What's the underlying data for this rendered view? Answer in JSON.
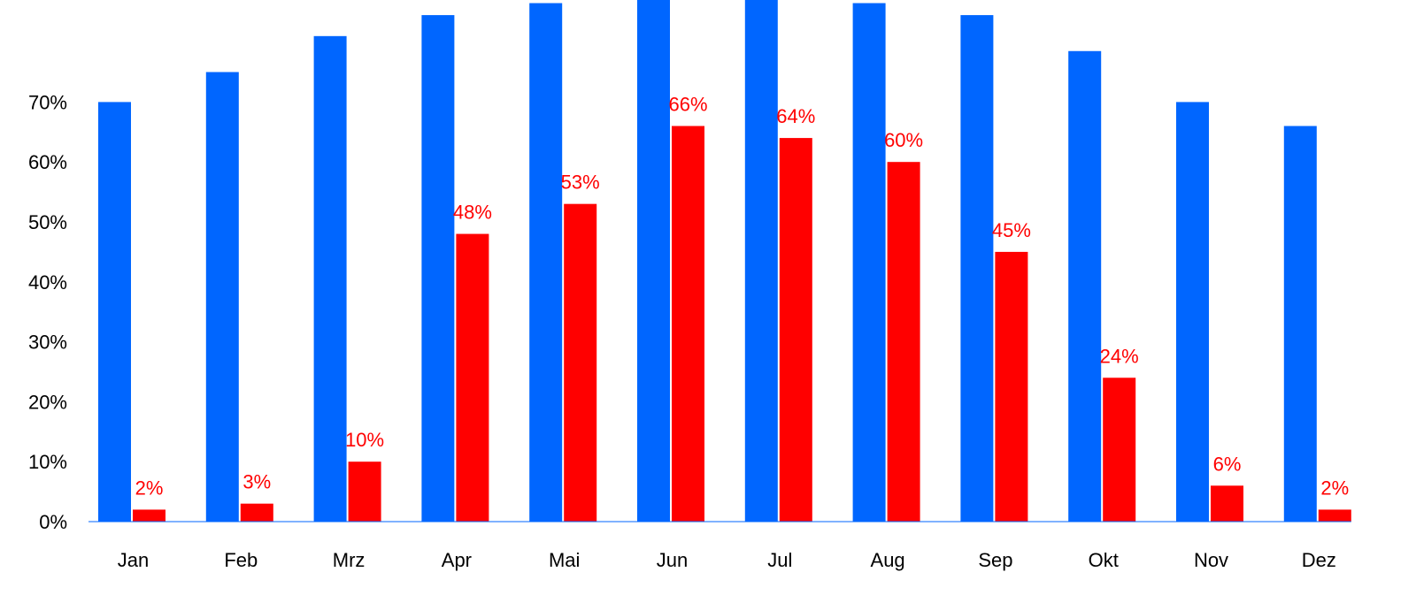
{
  "chart_data": {
    "type": "bar",
    "categories": [
      "Jan",
      "Feb",
      "Mrz",
      "Apr",
      "Mai",
      "Jun",
      "Jul",
      "Aug",
      "Sep",
      "Okt",
      "Nov",
      "Dez"
    ],
    "series": [
      {
        "color": "#0066ff",
        "values": [
          70,
          75,
          81,
          84.5,
          86.5,
          88,
          88,
          86.5,
          84.5,
          78.5,
          70,
          66
        ]
      },
      {
        "color": "#ff0000",
        "values": [
          2,
          3,
          10,
          48,
          53,
          66,
          64,
          60,
          45,
          24,
          6,
          2
        ],
        "data_labels": [
          "2%",
          "3%",
          "10%",
          "48%",
          "53%",
          "66%",
          "64%",
          "60%",
          "45%",
          "24%",
          "6%",
          "2%"
        ]
      }
    ],
    "y_ticks": [
      0,
      10,
      20,
      30,
      40,
      50,
      60,
      70
    ],
    "y_tick_labels": [
      "0%",
      "10%",
      "20%",
      "30%",
      "40%",
      "50%",
      "60%",
      "70%"
    ],
    "ylim": [
      0,
      87
    ],
    "grid": false,
    "label_color": "#ff0000",
    "axis_line_color": "#0066ff"
  }
}
